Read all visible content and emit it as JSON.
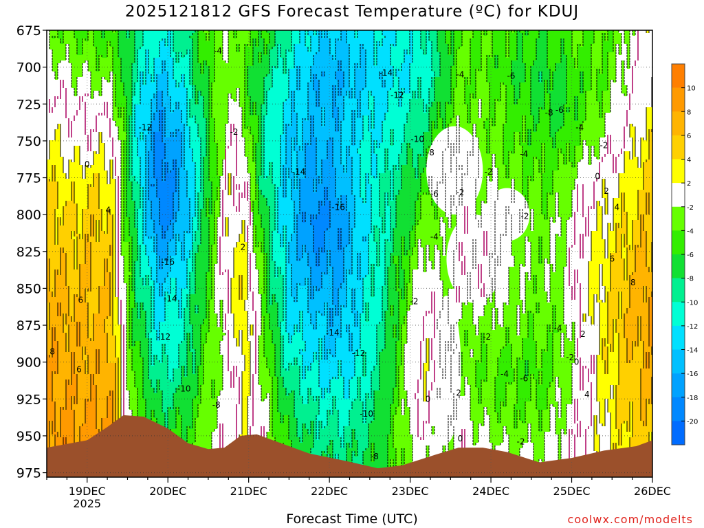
{
  "title": "2025121812 GFS Forecast Temperature (ºC) for KDUJ",
  "xlabel": "Forecast Time (UTC)",
  "credit": "coolwx.com/modelts",
  "chart_data": {
    "type": "heatmap",
    "title": "2025121812 GFS Forecast Temperature (ºC) for KDUJ",
    "xlabel": "Forecast Time (UTC)",
    "ylabel": "",
    "y_axis": {
      "ticks": [
        675,
        700,
        725,
        750,
        775,
        800,
        825,
        850,
        875,
        900,
        925,
        950,
        975
      ],
      "range": [
        675,
        978
      ],
      "unit": "hPa",
      "inverted": true
    },
    "x_axis": {
      "start": "2025-12-18 12Z",
      "end": "2025-12-26 00Z",
      "ticks": [
        {
          "label": "19DEC",
          "sublabel": "2025",
          "day": 1
        },
        {
          "label": "20DEC",
          "day": 2
        },
        {
          "label": "21DEC",
          "day": 3
        },
        {
          "label": "22DEC",
          "day": 4
        },
        {
          "label": "23DEC",
          "day": 5
        },
        {
          "label": "24DEC",
          "day": 6
        },
        {
          "label": "25DEC",
          "day": 7
        },
        {
          "label": "26DEC",
          "day": 8
        }
      ],
      "range_days": [
        0.5,
        8.0
      ]
    },
    "grid": true,
    "colorbar": {
      "position": "right",
      "bins": [
        {
          "from": 10,
          "to": 12,
          "color": "#ff7f00"
        },
        {
          "from": 8,
          "to": 10,
          "color": "#ff9a00"
        },
        {
          "from": 6,
          "to": 8,
          "color": "#ffb400"
        },
        {
          "from": 4,
          "to": 6,
          "color": "#ffd000"
        },
        {
          "from": 2,
          "to": 4,
          "color": "#ffff00"
        },
        {
          "from": -2,
          "to": 2,
          "color": "#ffffff"
        },
        {
          "from": -4,
          "to": -2,
          "color": "#66ff00"
        },
        {
          "from": -6,
          "to": -4,
          "color": "#33ee00"
        },
        {
          "from": -8,
          "to": -6,
          "color": "#11e033"
        },
        {
          "from": -10,
          "to": -8,
          "color": "#00f090"
        },
        {
          "from": -12,
          "to": -10,
          "color": "#00ffd5"
        },
        {
          "from": -14,
          "to": -12,
          "color": "#00e0ff"
        },
        {
          "from": -16,
          "to": -14,
          "color": "#00c0ff"
        },
        {
          "from": -18,
          "to": -16,
          "color": "#00a2ff"
        },
        {
          "from": -20,
          "to": -18,
          "color": "#0088ff"
        },
        {
          "from": -22,
          "to": -20,
          "color": "#006cff"
        }
      ],
      "labels": [
        "10",
        "8",
        "6",
        "4",
        "2",
        "-2",
        "-4",
        "-6",
        "-8",
        "-10",
        "-12",
        "-14",
        "-16",
        "-18",
        "-20"
      ]
    },
    "terrain": {
      "color": "#9b502b",
      "surface_pressure": [
        {
          "day": 0.5,
          "p": 958
        },
        {
          "day": 1.0,
          "p": 953
        },
        {
          "day": 1.25,
          "p": 944
        },
        {
          "day": 1.45,
          "p": 936
        },
        {
          "day": 1.7,
          "p": 937
        },
        {
          "day": 2.0,
          "p": 945
        },
        {
          "day": 2.25,
          "p": 955
        },
        {
          "day": 2.5,
          "p": 959
        },
        {
          "day": 2.7,
          "p": 958
        },
        {
          "day": 2.9,
          "p": 950
        },
        {
          "day": 3.1,
          "p": 949
        },
        {
          "day": 3.4,
          "p": 955
        },
        {
          "day": 3.75,
          "p": 962
        },
        {
          "day": 4.2,
          "p": 967
        },
        {
          "day": 4.6,
          "p": 972
        },
        {
          "day": 4.9,
          "p": 970
        },
        {
          "day": 5.3,
          "p": 963
        },
        {
          "day": 5.6,
          "p": 958
        },
        {
          "day": 5.9,
          "p": 958
        },
        {
          "day": 6.2,
          "p": 961
        },
        {
          "day": 6.6,
          "p": 968
        },
        {
          "day": 7.0,
          "p": 965
        },
        {
          "day": 7.4,
          "p": 960
        },
        {
          "day": 7.8,
          "p": 957
        },
        {
          "day": 8.0,
          "p": 953
        }
      ]
    },
    "columns": [
      {
        "day": 0.5,
        "t": [
          -3,
          -1,
          1,
          2,
          4,
          5,
          6,
          7,
          7,
          8,
          8,
          9
        ]
      },
      {
        "day": 0.85,
        "t": [
          -4,
          -2,
          0,
          1,
          3,
          4,
          5,
          6,
          7,
          7,
          8,
          9
        ]
      },
      {
        "day": 1.0,
        "t": [
          -4,
          -2,
          0,
          1,
          4,
          5,
          6,
          6,
          7,
          7,
          8,
          9
        ]
      },
      {
        "day": 1.3,
        "t": [
          -5,
          -3,
          -1,
          2,
          3,
          4,
          5,
          6,
          6,
          7,
          8,
          9
        ]
      },
      {
        "day": 1.45,
        "t": [
          -6,
          -6,
          -5,
          -4,
          -4,
          -3,
          -2,
          -2,
          -1,
          0,
          1,
          2
        ]
      },
      {
        "day": 1.6,
        "t": [
          -9,
          -10,
          -11,
          -11,
          -10,
          -9,
          -8,
          -7,
          -6,
          -5,
          -4,
          -3
        ]
      },
      {
        "day": 1.9,
        "t": [
          -12,
          -14,
          -17,
          -19,
          -20,
          -19,
          -16,
          -13,
          -12,
          -10,
          -8,
          -6
        ]
      },
      {
        "day": 2.2,
        "t": [
          -9,
          -11,
          -13,
          -15,
          -16,
          -15,
          -13,
          -11,
          -10,
          -9,
          -7,
          -5
        ]
      },
      {
        "day": 2.5,
        "t": [
          -4,
          -5,
          -6,
          -7,
          -7,
          -6,
          -5,
          -5,
          -4,
          -4,
          -3,
          -2
        ]
      },
      {
        "day": 2.75,
        "t": [
          -2,
          -2,
          -1,
          0,
          1,
          2,
          2,
          1,
          0,
          -1,
          -1,
          0
        ]
      },
      {
        "day": 2.95,
        "t": [
          -4,
          -5,
          -3,
          -1,
          0,
          1,
          3,
          4,
          4,
          3,
          2,
          2
        ]
      },
      {
        "day": 3.2,
        "t": [
          -6,
          -8,
          -10,
          -10,
          -9,
          -7,
          -6,
          -5,
          -4,
          -3,
          -2,
          -1
        ]
      },
      {
        "day": 3.5,
        "t": [
          -10,
          -12,
          -13,
          -14,
          -14,
          -14,
          -14,
          -13,
          -12,
          -10,
          -8,
          -6
        ]
      },
      {
        "day": 3.8,
        "t": [
          -13,
          -15,
          -15,
          -16,
          -17,
          -19,
          -17,
          -15,
          -13,
          -12,
          -10,
          -8
        ]
      },
      {
        "day": 4.1,
        "t": [
          -14,
          -16,
          -15,
          -15,
          -16,
          -18,
          -17,
          -16,
          -15,
          -13,
          -11,
          -9
        ]
      },
      {
        "day": 4.4,
        "t": [
          -13,
          -14,
          -13,
          -12,
          -12,
          -13,
          -13,
          -12,
          -12,
          -11,
          -10,
          -8
        ]
      },
      {
        "day": 4.7,
        "t": [
          -12,
          -13,
          -12,
          -11,
          -10,
          -10,
          -9,
          -9,
          -8,
          -8,
          -7,
          -6
        ]
      },
      {
        "day": 5.0,
        "t": [
          -11,
          -12,
          -10,
          -9,
          -7,
          -6,
          -4,
          -3,
          -2,
          -1,
          -1,
          -2
        ]
      },
      {
        "day": 5.2,
        "t": [
          -10,
          -11,
          -9,
          -7,
          -5,
          -3,
          -1,
          0,
          1,
          2,
          1,
          -1
        ]
      },
      {
        "day": 5.4,
        "t": [
          -7,
          -8,
          -6,
          -4,
          -3,
          -3,
          -3,
          -2,
          -2,
          -2,
          -2,
          -2
        ]
      },
      {
        "day": 5.6,
        "t": [
          -4,
          -4,
          -3,
          -2,
          -1,
          -1,
          -1,
          -1,
          -3,
          -3,
          -1,
          -1
        ]
      },
      {
        "day": 5.9,
        "t": [
          -4,
          -4,
          -3,
          -3,
          -2,
          -1,
          -1,
          -1,
          -3,
          -4,
          -3,
          -1
        ]
      },
      {
        "day": 6.3,
        "t": [
          -5,
          -6,
          -5,
          -4,
          -3,
          -3,
          -2,
          -2,
          -3,
          -5,
          -4,
          -2
        ]
      },
      {
        "day": 6.6,
        "t": [
          -6,
          -7,
          -6,
          -5,
          -4,
          -3,
          -3,
          -3,
          -4,
          -5,
          -4,
          -2
        ]
      },
      {
        "day": 6.9,
        "t": [
          -5,
          -6,
          -7,
          -5,
          -3,
          -2,
          -2,
          -2,
          -3,
          -3,
          -2,
          -1
        ]
      },
      {
        "day": 7.1,
        "t": [
          -4,
          -5,
          -5,
          -3,
          -1,
          0,
          1,
          1,
          0,
          -1,
          -1,
          0
        ]
      },
      {
        "day": 7.4,
        "t": [
          -4,
          -4,
          -3,
          -1,
          1,
          2,
          3,
          3,
          3,
          3,
          2,
          2
        ]
      },
      {
        "day": 7.7,
        "t": [
          -2,
          -1,
          0,
          1,
          3,
          4,
          5,
          6,
          6,
          5,
          5,
          4
        ]
      },
      {
        "day": 8.0,
        "t": [
          2,
          2,
          3,
          4,
          5,
          6,
          7,
          8,
          8,
          7,
          6,
          5
        ]
      }
    ],
    "column_levels": [
      680,
      705,
      730,
      755,
      780,
      805,
      830,
      855,
      880,
      905,
      930,
      960
    ],
    "contour_labels": [
      {
        "text": "-4",
        "day": 2.62,
        "p": 689
      },
      {
        "text": "-12",
        "day": 1.72,
        "p": 741
      },
      {
        "text": "-2",
        "day": 2.82,
        "p": 744
      },
      {
        "text": "0",
        "day": 1.0,
        "p": 766
      },
      {
        "text": "4",
        "day": 1.26,
        "p": 797
      },
      {
        "text": "-14",
        "day": 3.62,
        "p": 771
      },
      {
        "text": "-16",
        "day": 4.11,
        "p": 795
      },
      {
        "text": "2",
        "day": 2.93,
        "p": 822
      },
      {
        "text": "-16",
        "day": 2.0,
        "p": 832
      },
      {
        "text": "-14",
        "day": 2.03,
        "p": 857
      },
      {
        "text": "-12",
        "day": 1.95,
        "p": 883
      },
      {
        "text": "6",
        "day": 0.92,
        "p": 858
      },
      {
        "text": "8",
        "day": 0.57,
        "p": 893
      },
      {
        "text": "6",
        "day": 0.9,
        "p": 905
      },
      {
        "text": "-10",
        "day": 2.2,
        "p": 918
      },
      {
        "text": "-8",
        "day": 2.6,
        "p": 929
      },
      {
        "text": "-14",
        "day": 4.04,
        "p": 880
      },
      {
        "text": "-12",
        "day": 4.36,
        "p": 894
      },
      {
        "text": "-10",
        "day": 4.46,
        "p": 935
      },
      {
        "text": "-8",
        "day": 4.56,
        "p": 964
      },
      {
        "text": "-14",
        "day": 4.7,
        "p": 704
      },
      {
        "text": "-12",
        "day": 4.84,
        "p": 719
      },
      {
        "text": "-10",
        "day": 5.09,
        "p": 749
      },
      {
        "text": "-8",
        "day": 5.25,
        "p": 758
      },
      {
        "text": "-6",
        "day": 5.3,
        "p": 786
      },
      {
        "text": "-4",
        "day": 5.3,
        "p": 815
      },
      {
        "text": "-2",
        "day": 5.05,
        "p": 859
      },
      {
        "text": "0",
        "day": 5.22,
        "p": 925
      },
      {
        "text": "2",
        "day": 5.6,
        "p": 921
      },
      {
        "text": "0",
        "day": 5.62,
        "p": 952
      },
      {
        "text": "-4",
        "day": 5.62,
        "p": 705
      },
      {
        "text": "-6",
        "day": 6.25,
        "p": 706
      },
      {
        "text": "-8",
        "day": 6.72,
        "p": 731
      },
      {
        "text": "-6",
        "day": 6.85,
        "p": 729
      },
      {
        "text": "-4",
        "day": 7.1,
        "p": 741
      },
      {
        "text": "-4",
        "day": 6.41,
        "p": 759
      },
      {
        "text": "-2",
        "day": 5.97,
        "p": 771
      },
      {
        "text": "-2",
        "day": 5.62,
        "p": 785
      },
      {
        "text": "-2",
        "day": 6.42,
        "p": 801
      },
      {
        "text": "-2",
        "day": 5.95,
        "p": 883
      },
      {
        "text": "-4",
        "day": 6.17,
        "p": 908
      },
      {
        "text": "-6",
        "day": 6.41,
        "p": 911
      },
      {
        "text": "-4",
        "day": 6.83,
        "p": 877
      },
      {
        "text": "-2",
        "day": 6.98,
        "p": 897
      },
      {
        "text": "-2",
        "day": 6.37,
        "p": 954
      },
      {
        "text": "0",
        "day": 7.06,
        "p": 900
      },
      {
        "text": "2",
        "day": 7.14,
        "p": 881
      },
      {
        "text": "4",
        "day": 7.19,
        "p": 922
      },
      {
        "text": "-2",
        "day": 7.4,
        "p": 753
      },
      {
        "text": "0",
        "day": 7.32,
        "p": 774
      },
      {
        "text": "2",
        "day": 7.43,
        "p": 784
      },
      {
        "text": "4",
        "day": 7.56,
        "p": 795
      },
      {
        "text": "6",
        "day": 7.5,
        "p": 830
      },
      {
        "text": "8",
        "day": 7.76,
        "p": 846
      }
    ],
    "white_patches": [
      {
        "day": 5.55,
        "p": 770,
        "rw": 0.35,
        "rp": 30
      },
      {
        "day": 5.8,
        "p": 830,
        "rw": 0.35,
        "rp": 30
      },
      {
        "day": 6.2,
        "p": 800,
        "rw": 0.28,
        "rp": 18
      },
      {
        "day": 5.45,
        "p": 905,
        "rw": 0.18,
        "rp": 50
      }
    ]
  }
}
